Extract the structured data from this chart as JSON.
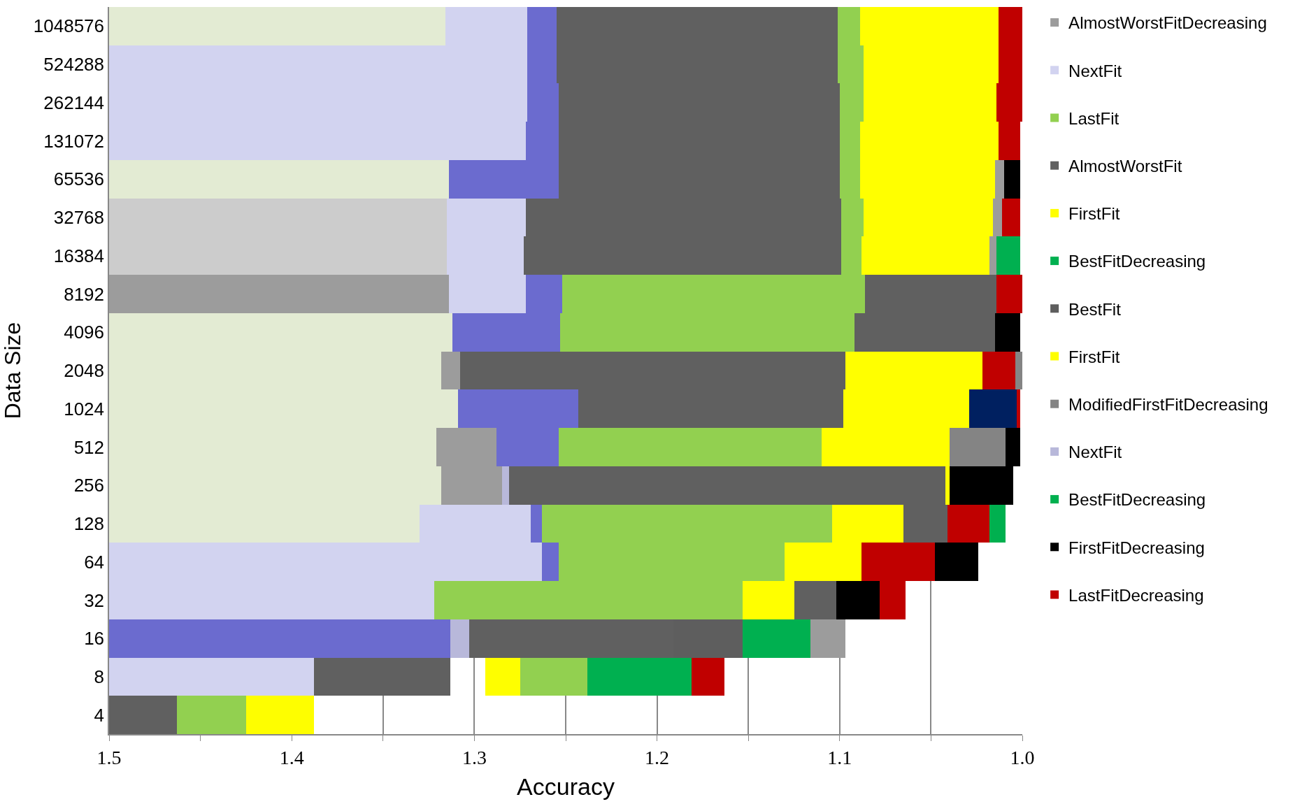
{
  "chart_data": {
    "type": "bar",
    "orientation": "horizontal",
    "xlabel": "Accuracy",
    "ylabel": "Data Size",
    "categories": [
      "1048576",
      "524288",
      "262144",
      "131072",
      "65536",
      "32768",
      "16384",
      "8192",
      "4096",
      "2048",
      "1024",
      "512",
      "256",
      "128",
      "64",
      "32",
      "16",
      "8",
      "4"
    ],
    "xlim": [
      1.5,
      1.0
    ],
    "xticks": [
      1.5,
      {
        "value": 1.45,
        "label": null
      },
      1.4,
      {
        "value": 1.35,
        "label": null
      },
      1.3,
      {
        "value": 1.25,
        "label": null
      },
      1.2,
      {
        "value": 1.15,
        "label": null
      },
      1.1,
      {
        "value": 1.05,
        "label": null
      },
      {
        "value": 1.0,
        "label": "1.0"
      }
    ],
    "grid": "x",
    "legend": "right",
    "series": [
      {
        "name": "AlmostWorstFitDecreasing",
        "color": "#9c9c9c",
        "values": [
          null,
          null,
          null,
          null,
          0.005,
          0.005,
          0.004,
          0.186,
          null,
          0.01,
          null,
          0.033,
          0.033,
          null,
          null,
          null,
          0.019,
          null,
          null
        ],
        "base": [
          null,
          null,
          null,
          null,
          1.01,
          1.011,
          1.014,
          1.314,
          null,
          1.308,
          null,
          1.288,
          1.285,
          null,
          null,
          null,
          1.097,
          null,
          null
        ]
      },
      {
        "name": "NextFit",
        "color": "#d2d3f0",
        "values": [
          0.045,
          0.229,
          0.229,
          0.228,
          null,
          0.043,
          0.042,
          0.042,
          null,
          null,
          null,
          null,
          null,
          0.061,
          0.237,
          0.178,
          null,
          0.112,
          null
        ],
        "base": [
          1.271,
          1.271,
          1.271,
          1.272,
          null,
          1.272,
          1.273,
          1.272,
          null,
          null,
          null,
          null,
          null,
          1.269,
          1.263,
          1.322,
          null,
          1.388,
          null
        ]
      },
      {
        "name": "LastFit",
        "color": "#92d050",
        "values": [
          0.012,
          0.014,
          0.013,
          0.011,
          0.011,
          0.012,
          0.011,
          0.166,
          0.161,
          null,
          null,
          0.144,
          null,
          0.159,
          0.124,
          0.169,
          null,
          0.037,
          0.038
        ],
        "base": [
          1.089,
          1.087,
          1.087,
          1.089,
          1.089,
          1.087,
          1.088,
          1.086,
          1.092,
          null,
          null,
          1.11,
          null,
          1.104,
          1.13,
          1.153,
          null,
          1.238,
          1.425
        ]
      },
      {
        "name": "AlmostWorstFit",
        "color": "#606060",
        "values": [
          0.154,
          0.154,
          0.154,
          0.154,
          0.154,
          0.173,
          0.174,
          0.072,
          0.077,
          0.211,
          0.145,
          null,
          0.239,
          0.024,
          null,
          0.023,
          0.112,
          0.075,
          0.037
        ],
        "base": [
          1.101,
          1.101,
          1.1,
          1.1,
          1.1,
          1.099,
          1.099,
          1.014,
          1.015,
          1.097,
          1.098,
          null,
          1.042,
          1.041,
          null,
          1.102,
          1.191,
          1.313,
          1.463
        ]
      },
      {
        "name": "FirstFit",
        "color": "#ffff00",
        "values": [
          0.076,
          0.074,
          0.073,
          0.076,
          0.074,
          0.071,
          0.07,
          null,
          null,
          0.075,
          0.069,
          0.07,
          null,
          0.039,
          0.042,
          0.028,
          null,
          null,
          null
        ],
        "base": [
          1.013,
          1.013,
          1.014,
          1.013,
          1.015,
          1.016,
          1.018,
          null,
          null,
          1.022,
          1.029,
          1.04,
          null,
          1.065,
          1.088,
          1.125,
          null,
          null,
          null
        ]
      },
      {
        "name": "BestFitDecreasing",
        "color": "#00b050",
        "values": [
          null,
          null,
          null,
          null,
          null,
          null,
          0.013,
          null,
          null,
          null,
          null,
          null,
          null,
          null,
          null,
          null,
          0.037,
          0.057,
          null
        ],
        "base": [
          null,
          null,
          null,
          null,
          null,
          null,
          1.001,
          null,
          null,
          null,
          null,
          null,
          null,
          null,
          null,
          null,
          1.116,
          1.181,
          null
        ]
      },
      {
        "name": "BestFit",
        "color": "#5e5e5e",
        "values": [
          null,
          null,
          null,
          null,
          null,
          null,
          null,
          null,
          null,
          null,
          null,
          null,
          null,
          null,
          null,
          null,
          0.038,
          null,
          null
        ],
        "base": [
          null,
          null,
          null,
          null,
          null,
          null,
          null,
          null,
          null,
          null,
          null,
          null,
          null,
          null,
          null,
          null,
          1.153,
          null,
          null
        ]
      },
      {
        "name": "FirstFit",
        "color": "#fefe00",
        "values": [
          null,
          null,
          null,
          null,
          null,
          null,
          null,
          null,
          null,
          null,
          null,
          null,
          0.002,
          null,
          null,
          null,
          null,
          0.019,
          0.037
        ],
        "base": [
          null,
          null,
          null,
          null,
          null,
          null,
          null,
          null,
          null,
          null,
          null,
          null,
          1.04,
          null,
          null,
          null,
          null,
          1.275,
          1.388
        ]
      },
      {
        "name": "ModifiedFirstFitDecreasing",
        "color": "#848484",
        "values": [
          null,
          null,
          null,
          null,
          null,
          null,
          null,
          null,
          null,
          0.004,
          null,
          0.031,
          null,
          null,
          null,
          null,
          null,
          null,
          null
        ],
        "base": [
          null,
          null,
          null,
          null,
          null,
          null,
          null,
          null,
          null,
          1.0,
          null,
          1.009,
          null,
          null,
          null,
          null,
          null,
          null,
          null
        ]
      },
      {
        "name": "NextFit",
        "color": "#b8b8da",
        "values": [
          null,
          null,
          null,
          null,
          null,
          null,
          null,
          null,
          null,
          null,
          null,
          null,
          0.004,
          null,
          null,
          null,
          0.01,
          null,
          null
        ],
        "base": [
          null,
          null,
          null,
          null,
          null,
          null,
          null,
          null,
          null,
          null,
          null,
          null,
          1.281,
          null,
          null,
          null,
          1.303,
          null,
          null
        ]
      },
      {
        "name": "BestFitDecreasing",
        "color": "#00b04f",
        "values": [
          null,
          null,
          null,
          null,
          null,
          null,
          null,
          null,
          null,
          null,
          null,
          null,
          null,
          0.009,
          null,
          null,
          null,
          null,
          null
        ],
        "base": [
          null,
          null,
          null,
          null,
          null,
          null,
          null,
          null,
          null,
          null,
          null,
          null,
          null,
          1.009,
          null,
          null,
          null,
          null,
          null
        ]
      },
      {
        "name": "FirstFitDecreasing",
        "color": "#000000",
        "values": [
          null,
          null,
          null,
          null,
          0.009,
          null,
          null,
          null,
          0.014,
          null,
          null,
          0.008,
          0.035,
          null,
          0.024,
          0.024,
          null,
          null,
          null
        ],
        "base": [
          null,
          null,
          null,
          null,
          1.001,
          null,
          null,
          null,
          1.001,
          null,
          null,
          1.001,
          1.005,
          null,
          1.024,
          1.078,
          null,
          null,
          null
        ]
      },
      {
        "name": "LastFitDecreasing",
        "color": "#c00000",
        "values": [
          0.013,
          0.013,
          0.014,
          0.012,
          null,
          0.01,
          null,
          0.014,
          null,
          0.018,
          0.002,
          null,
          null,
          0.023,
          0.04,
          0.014,
          null,
          0.018,
          null
        ],
        "base": [
          1.0,
          1.0,
          1.0,
          1.001,
          null,
          1.001,
          null,
          1.0,
          null,
          1.004,
          1.001,
          null,
          null,
          1.018,
          1.048,
          1.064,
          null,
          1.163,
          null
        ]
      },
      {
        "color": "#e3ebd3",
        "values": [
          0.184,
          null,
          null,
          null,
          0.186,
          null,
          null,
          null,
          0.188,
          0.182,
          0.191,
          0.179,
          0.182,
          0.17,
          null,
          null,
          null,
          null,
          null
        ],
        "base": [
          1.316,
          null,
          null,
          null,
          1.314,
          null,
          null,
          null,
          1.312,
          1.318,
          1.309,
          1.321,
          1.318,
          1.33,
          null,
          null,
          null,
          null,
          null
        ]
      },
      {
        "color": "#6b6bcf",
        "values": [
          0.016,
          0.016,
          0.017,
          0.018,
          0.06,
          null,
          null,
          0.02,
          0.059,
          null,
          0.066,
          0.034,
          null,
          0.006,
          0.009,
          null,
          0.187,
          null,
          null
        ],
        "base": [
          1.255,
          1.255,
          1.254,
          1.254,
          1.254,
          null,
          null,
          1.252,
          1.253,
          null,
          1.243,
          1.254,
          null,
          1.263,
          1.254,
          null,
          1.313,
          null,
          null
        ]
      },
      {
        "color": "#cccccc",
        "values": [
          null,
          null,
          null,
          null,
          null,
          0.185,
          0.185,
          null,
          null,
          null,
          null,
          null,
          null,
          null,
          null,
          null,
          null,
          null,
          null
        ],
        "base": [
          null,
          null,
          null,
          null,
          null,
          1.315,
          1.315,
          null,
          null,
          null,
          null,
          null,
          null,
          null,
          null,
          null,
          null,
          null,
          null
        ]
      },
      {
        "color": "#002060",
        "values": [
          null,
          null,
          null,
          null,
          null,
          null,
          null,
          null,
          null,
          null,
          0.026,
          null,
          null,
          null,
          null,
          null,
          null,
          null,
          null
        ],
        "base": [
          null,
          null,
          null,
          null,
          null,
          null,
          null,
          null,
          null,
          null,
          1.003,
          null,
          null,
          null,
          null,
          null,
          null,
          null,
          null
        ]
      }
    ]
  }
}
